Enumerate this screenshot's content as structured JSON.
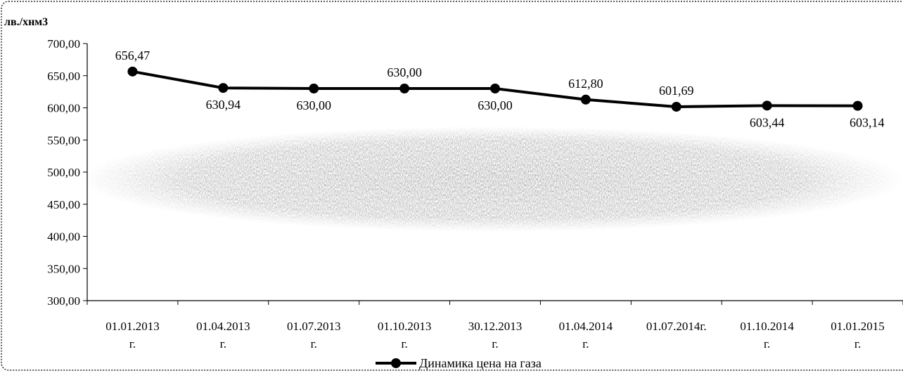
{
  "chart_data": {
    "type": "line",
    "ylabel": "лв./хнм3",
    "ylim": [
      300,
      700
    ],
    "ytick_step": 50,
    "yticks": [
      "700,00",
      "650,00",
      "600,00",
      "550,00",
      "500,00",
      "450,00",
      "400,00",
      "350,00",
      "300,00"
    ],
    "categories": [
      [
        "01.01.2013",
        "г."
      ],
      [
        "01.04.2013",
        "г."
      ],
      [
        "01.07.2013",
        "г."
      ],
      [
        "01.10.2013",
        "г."
      ],
      [
        "30.12.2013",
        "г."
      ],
      [
        "01.04.2014",
        "г."
      ],
      [
        "01.07.2014г.",
        ""
      ],
      [
        "01.10.2014",
        "г."
      ],
      [
        "01.01.2015",
        "г."
      ]
    ],
    "series": [
      {
        "name": "Динамика цена на газа",
        "color": "#000000",
        "values": [
          656.47,
          630.94,
          630.0,
          630.0,
          630.0,
          612.8,
          601.69,
          603.44,
          603.14
        ],
        "labels": [
          "656,47",
          "630,94",
          "630,00",
          "630,00",
          "630,00",
          "612,80",
          "601,69",
          "603,44",
          "603,14"
        ],
        "label_pos": [
          "above",
          "below",
          "below",
          "above",
          "below",
          "above",
          "above",
          "below",
          "below"
        ]
      }
    ],
    "legend": "bottom-center",
    "grid": false
  }
}
